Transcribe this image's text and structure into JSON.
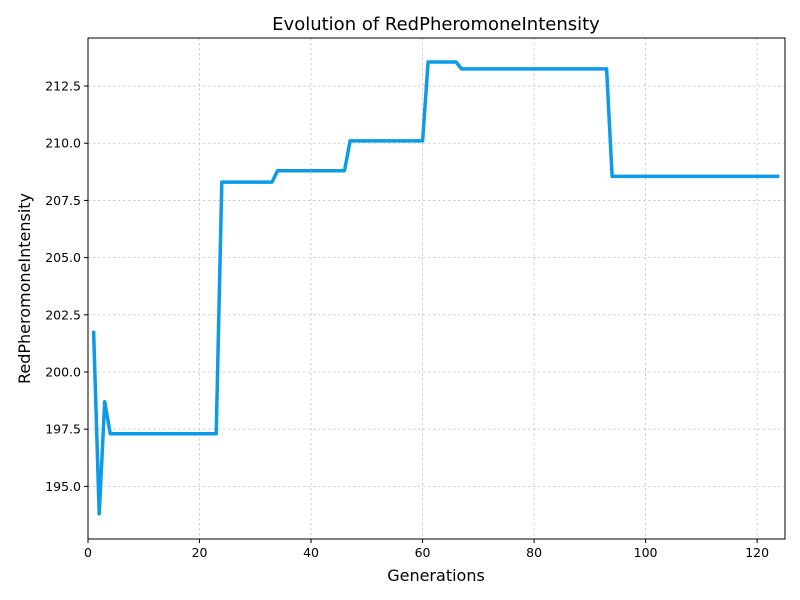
{
  "chart_data": {
    "type": "line",
    "title": "Evolution of RedPheromoneIntensity",
    "xlabel": "Generations",
    "ylabel": "RedPheromoneIntensity",
    "xlim": [
      0,
      125
    ],
    "ylim": [
      192.7,
      214.6
    ],
    "xticks": [
      0,
      20,
      40,
      60,
      80,
      100,
      120
    ],
    "yticks": [
      195.0,
      197.5,
      200.0,
      202.5,
      205.0,
      207.5,
      210.0,
      212.5
    ],
    "xtick_labels": [
      "0",
      "20",
      "40",
      "60",
      "80",
      "100",
      "120"
    ],
    "ytick_labels": [
      "195.0",
      "197.5",
      "200.0",
      "202.5",
      "205.0",
      "207.5",
      "210.0",
      "212.5"
    ],
    "grid": true,
    "line_color": "#0d9be8",
    "series": [
      {
        "x": [
          1,
          2,
          3,
          4,
          23,
          24,
          33,
          34,
          46,
          47,
          60,
          61,
          66,
          67,
          93,
          94,
          124
        ],
        "values": [
          201.8,
          193.8,
          198.7,
          197.3,
          197.3,
          208.3,
          208.3,
          208.8,
          208.8,
          210.1,
          210.1,
          213.55,
          213.55,
          213.25,
          213.25,
          208.55,
          208.55
        ]
      }
    ]
  }
}
